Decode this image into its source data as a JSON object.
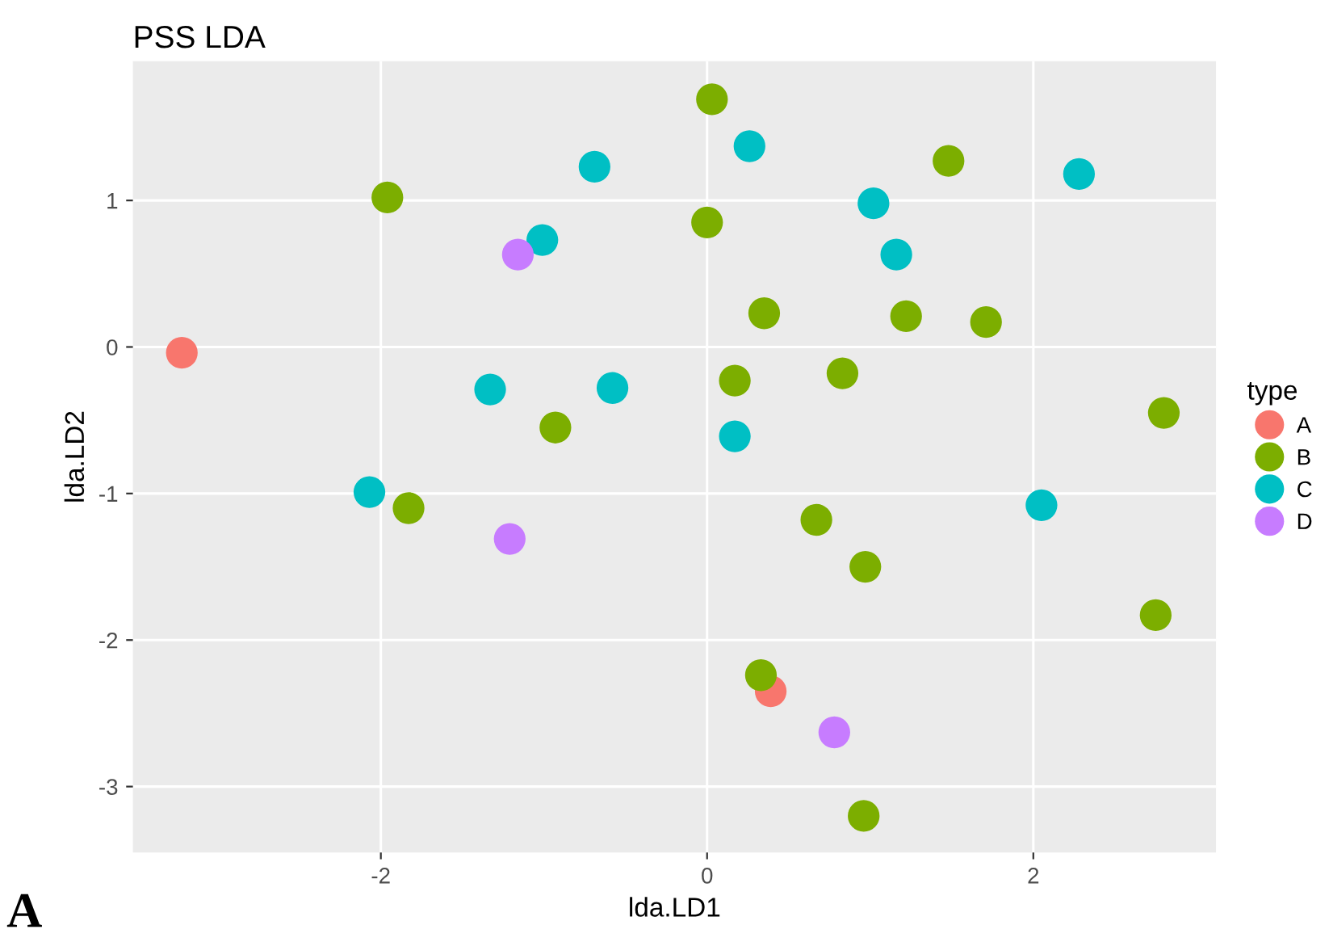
{
  "chart_data": {
    "type": "scatter",
    "title": "PSS LDA",
    "xlabel": "lda.LD1",
    "ylabel": "lda.LD2",
    "legend_title": "type",
    "legend": "right",
    "grid": true,
    "marker": "circle",
    "xlim": [
      -3.52,
      3.12
    ],
    "ylim": [
      -3.45,
      1.95
    ],
    "xticks": [
      -2,
      0,
      2
    ],
    "yticks": [
      -3,
      -2,
      -1,
      0,
      1
    ],
    "annotations": [
      "A"
    ],
    "series": [
      {
        "name": "A",
        "color": "#f8766d",
        "x": [
          -3.22,
          0.39
        ],
        "values": [
          -0.04,
          -2.35
        ]
      },
      {
        "name": "B",
        "color": "#7cae00",
        "x": [
          0.03,
          -1.96,
          1.48,
          0.0,
          0.35,
          1.22,
          1.71,
          0.17,
          0.83,
          2.8,
          -0.93,
          -1.83,
          0.67,
          0.97,
          2.75,
          0.33,
          0.96
        ],
        "values": [
          1.69,
          1.02,
          1.27,
          0.85,
          0.23,
          0.21,
          0.17,
          -0.23,
          -0.18,
          -0.45,
          -0.55,
          -1.1,
          -1.18,
          -1.5,
          -1.83,
          -2.24,
          -3.2
        ]
      },
      {
        "name": "C",
        "color": "#00bfc4",
        "x": [
          0.26,
          -0.69,
          1.02,
          2.28,
          -1.01,
          1.16,
          -1.33,
          -0.58,
          0.17,
          -2.07,
          2.05
        ],
        "values": [
          1.37,
          1.23,
          0.98,
          1.18,
          0.73,
          0.63,
          -0.29,
          -0.28,
          -0.61,
          -0.99,
          -1.08
        ]
      },
      {
        "name": "D",
        "color": "#c77cff",
        "x": [
          -1.16,
          -1.21,
          0.78
        ],
        "values": [
          0.63,
          -1.31,
          -2.63
        ]
      }
    ]
  }
}
